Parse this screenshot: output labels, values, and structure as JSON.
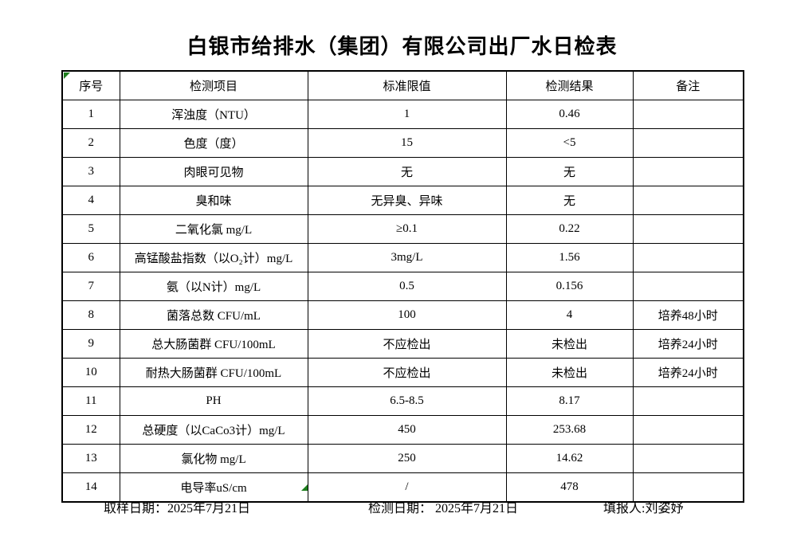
{
  "page": {
    "title": "白银市给排水（集团）有限公司出厂水日检表"
  },
  "colors": {
    "border_black": "#000000",
    "marker_green": "#1e7e1e"
  },
  "table": {
    "headers": [
      "序号",
      "检测项目",
      "标准限值",
      "检测结果",
      "备注"
    ],
    "rows": [
      {
        "no": "1",
        "item": "浑浊度（NTU）",
        "limit": "1",
        "result": "0.46",
        "remark": ""
      },
      {
        "no": "2",
        "item": "色度（度）",
        "limit": "15",
        "result": "<5",
        "remark": ""
      },
      {
        "no": "3",
        "item": "肉眼可见物",
        "limit": "无",
        "result": "无",
        "remark": ""
      },
      {
        "no": "4",
        "item": "臭和味",
        "limit": "无异臭、异味",
        "result": "无",
        "remark": ""
      },
      {
        "no": "5",
        "item": "二氧化氯 mg/L",
        "limit": "≥0.1",
        "result": "0.22",
        "remark": ""
      },
      {
        "no": "6",
        "item": "高锰酸盐指数（以O₂计）mg/L",
        "limit": "3mg/L",
        "result": "1.56",
        "remark": ""
      },
      {
        "no": "7",
        "item": "氨（以N计）mg/L",
        "limit": "0.5",
        "result": "0.156",
        "remark": ""
      },
      {
        "no": "8",
        "item": "菌落总数 CFU/mL",
        "limit": "100",
        "result": "4",
        "remark": "培养48小时"
      },
      {
        "no": "9",
        "item": "总大肠菌群 CFU/100mL",
        "limit": "不应检出",
        "result": "未检出",
        "remark": "培养24小时"
      },
      {
        "no": "10",
        "item": "耐热大肠菌群 CFU/100mL",
        "limit": "不应检出",
        "result": "未检出",
        "remark": "培养24小时"
      },
      {
        "no": "11",
        "item": "PH",
        "limit": "6.5-8.5",
        "result": "8.17",
        "remark": ""
      },
      {
        "no": "12",
        "item": "总硬度（以CaCo3计）mg/L",
        "limit": "450",
        "result": "253.68",
        "remark": ""
      },
      {
        "no": "13",
        "item": "氯化物 mg/L",
        "limit": "250",
        "result": "14.62",
        "remark": ""
      },
      {
        "no": "14",
        "item": "电导率uS/cm",
        "limit": "/",
        "result": "478",
        "remark": ""
      }
    ]
  },
  "footer": {
    "sampling_date": "取样日期：2025年7月21日",
    "testing_date": "检测日期： 2025年7月21日",
    "reporter": "填报人:刘姿妤"
  }
}
